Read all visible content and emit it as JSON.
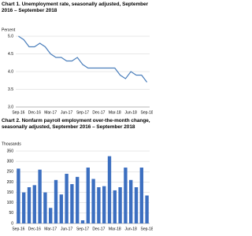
{
  "chart_data": [
    {
      "type": "line",
      "title": "Chart 1. Unemployment rate, seasonally adjusted, September 2016 – September 2018",
      "ylabel": "Percent",
      "categories": [
        "Sep-16",
        null,
        null,
        "Dec-16",
        null,
        null,
        "Mar-17",
        null,
        null,
        "Jun-17",
        null,
        null,
        "Sep-17",
        null,
        null,
        "Dec-17",
        null,
        null,
        "Mar-18",
        null,
        null,
        "Jun-18",
        null,
        null,
        "Sep-18"
      ],
      "values": [
        5.0,
        4.9,
        4.7,
        4.7,
        4.8,
        4.7,
        4.5,
        4.4,
        4.4,
        4.3,
        4.3,
        4.4,
        4.2,
        4.1,
        4.1,
        4.1,
        4.1,
        4.1,
        4.1,
        3.9,
        3.8,
        4.0,
        3.9,
        3.9,
        3.7
      ],
      "color": "#4a7ebb",
      "ylim": [
        3.0,
        5.0
      ],
      "yticks": [
        {
          "value": 3,
          "label": "3.0"
        },
        {
          "value": 3.5,
          "label": "3.5"
        },
        {
          "value": 4,
          "label": "4.0"
        },
        {
          "value": 4.5,
          "label": "4.5"
        },
        {
          "value": 5,
          "label": "5.0"
        }
      ],
      "grid": true
    },
    {
      "type": "bar",
      "title": "Chart 2. Nonfarm payroll employment over-the-month change, seasonally adjusted, September 2016 – September 2018",
      "ylabel": "Thousands",
      "categories": [
        "Sep-16",
        null,
        null,
        "Dec-16",
        null,
        null,
        "Mar-17",
        null,
        null,
        "Jun-17",
        null,
        null,
        "Sep-17",
        null,
        null,
        "Dec-17",
        null,
        null,
        "Mar-18",
        null,
        null,
        "Jun-18",
        null,
        null,
        "Sep-18"
      ],
      "values": [
        265,
        150,
        175,
        185,
        260,
        150,
        75,
        210,
        140,
        240,
        190,
        225,
        15,
        270,
        215,
        175,
        180,
        325,
        160,
        175,
        270,
        210,
        175,
        270,
        135
      ],
      "color": "#3c6fc0",
      "ylim": [
        0,
        350
      ],
      "yticks": [
        0,
        50,
        100,
        150,
        200,
        250,
        300,
        350
      ],
      "grid": true
    }
  ]
}
